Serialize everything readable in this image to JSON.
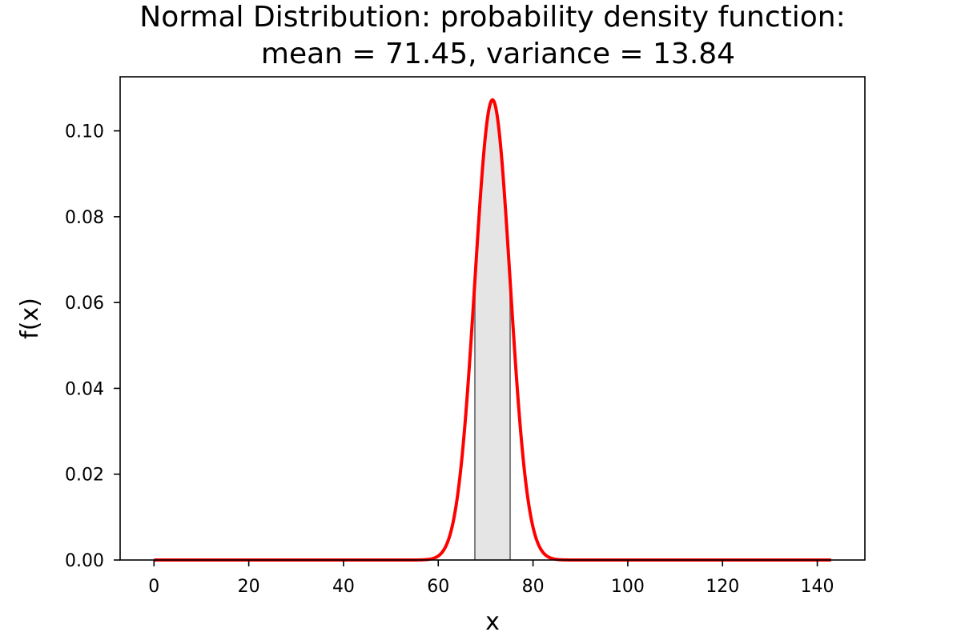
{
  "chart_data": {
    "type": "line",
    "title_line1": "Normal Distribution: probability density function:",
    "title_line2": "mean = 71.45, variance = 13.84",
    "xlabel": "x",
    "ylabel": "f(x)",
    "mean": 71.45,
    "variance": 13.84,
    "x_range": [
      0,
      142.9
    ],
    "xlim": [
      -7.15,
      150.05
    ],
    "ylim": [
      0,
      0.1126
    ],
    "xticks": [
      0,
      20,
      40,
      60,
      80,
      100,
      120,
      140
    ],
    "xtick_labels": [
      "0",
      "20",
      "40",
      "60",
      "80",
      "100",
      "120",
      "140"
    ],
    "yticks": [
      0.0,
      0.02,
      0.04,
      0.06,
      0.08,
      0.1
    ],
    "ytick_labels": [
      "0.00",
      "0.02",
      "0.04",
      "0.06",
      "0.08",
      "0.10"
    ],
    "shaded_region": [
      67.73,
      75.17
    ],
    "series": [
      {
        "color": "#ff0000"
      }
    ],
    "shade_fill": "#e5e5e5",
    "shade_edge": "#808080",
    "grid": false
  }
}
